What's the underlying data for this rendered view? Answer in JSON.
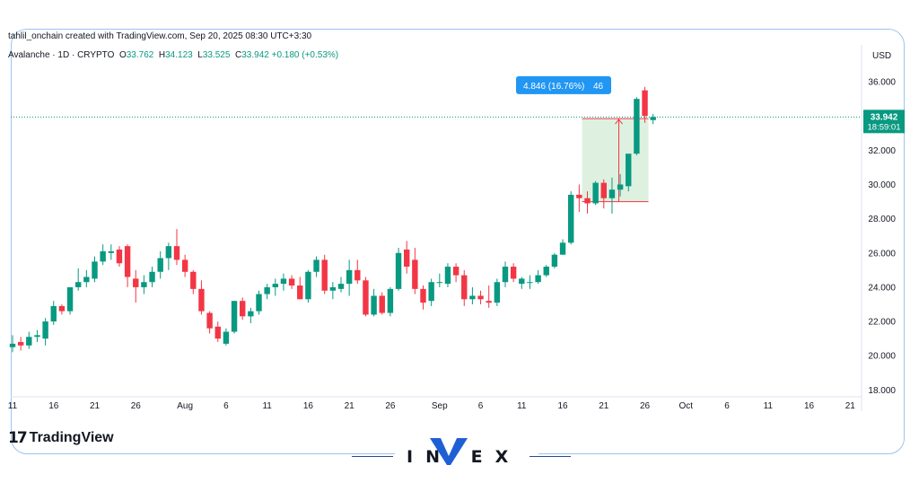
{
  "header": {
    "attribution": "tahlil_onchain created with TradingView.com, Sep 20, 2025 08:30 UTC+3:30",
    "symbol": "Avalanche · 1D · CRYPTO",
    "ohlc": [
      {
        "label": "O",
        "value": "33.762"
      },
      {
        "label": "H",
        "value": "34.123"
      },
      {
        "label": "L",
        "value": "33.525"
      },
      {
        "label": "C",
        "value": "33.942"
      }
    ],
    "change": "+0.180 (+0.53%)"
  },
  "axis": {
    "currency": "USD"
  },
  "price_badge": {
    "price": "33.942",
    "countdown": "18:59:01"
  },
  "measure": {
    "label": "4.846 (16.76%) ",
    "label_tail": "46"
  },
  "branding": {
    "tradingview": "TradingView",
    "invex": "IN EX"
  },
  "colors": {
    "up": "#089981",
    "down": "#f23645",
    "accent": "#2962ff",
    "measure_fill": "#d3ecd6",
    "measure_box": "#2196f3"
  },
  "chart_data": {
    "type": "candlestick",
    "ylim": [
      17.6,
      37.0
    ],
    "yticks": [
      "18.000",
      "20.000",
      "22.000",
      "24.000",
      "26.000",
      "28.000",
      "30.000",
      "32.000",
      "34.000",
      "36.000"
    ],
    "xticks": [
      "11",
      "16",
      "21",
      "26",
      "Aug",
      "6",
      "11",
      "16",
      "21",
      "26",
      "Sep",
      "6",
      "11",
      "16",
      "21",
      "26",
      "Oct",
      "6",
      "11",
      "16",
      "21"
    ],
    "x_first_date": "2025-07-11",
    "last_price": 33.942,
    "candles": [
      {
        "date": "2025-07-11",
        "o": 20.5,
        "h": 21.2,
        "l": 20.2,
        "c": 20.7
      },
      {
        "date": "2025-07-12",
        "o": 20.8,
        "h": 21.1,
        "l": 20.3,
        "c": 20.6
      },
      {
        "date": "2025-07-13",
        "o": 20.6,
        "h": 21.4,
        "l": 20.4,
        "c": 21.1
      },
      {
        "date": "2025-07-14",
        "o": 21.1,
        "h": 21.5,
        "l": 20.8,
        "c": 21.2
      },
      {
        "date": "2025-07-15",
        "o": 21.0,
        "h": 22.2,
        "l": 20.6,
        "c": 22.0
      },
      {
        "date": "2025-07-16",
        "o": 22.0,
        "h": 23.2,
        "l": 21.8,
        "c": 22.9
      },
      {
        "date": "2025-07-17",
        "o": 22.9,
        "h": 23.0,
        "l": 22.4,
        "c": 22.6
      },
      {
        "date": "2025-07-18",
        "o": 22.6,
        "h": 24.0,
        "l": 22.4,
        "c": 24.0
      },
      {
        "date": "2025-07-19",
        "o": 24.0,
        "h": 25.1,
        "l": 23.8,
        "c": 24.3
      },
      {
        "date": "2025-07-20",
        "o": 24.3,
        "h": 25.0,
        "l": 24.0,
        "c": 24.6
      },
      {
        "date": "2025-07-21",
        "o": 24.5,
        "h": 25.8,
        "l": 24.3,
        "c": 25.5
      },
      {
        "date": "2025-07-22",
        "o": 25.5,
        "h": 26.5,
        "l": 25.3,
        "c": 26.1
      },
      {
        "date": "2025-07-23",
        "o": 26.0,
        "h": 26.5,
        "l": 25.6,
        "c": 26.1
      },
      {
        "date": "2025-07-24",
        "o": 26.2,
        "h": 26.4,
        "l": 25.2,
        "c": 25.4
      },
      {
        "date": "2025-07-25",
        "o": 26.4,
        "h": 26.5,
        "l": 24.0,
        "c": 24.6
      },
      {
        "date": "2025-07-26",
        "o": 24.5,
        "h": 25.0,
        "l": 23.1,
        "c": 24.0
      },
      {
        "date": "2025-07-27",
        "o": 24.0,
        "h": 24.7,
        "l": 23.6,
        "c": 24.3
      },
      {
        "date": "2025-07-28",
        "o": 24.3,
        "h": 25.2,
        "l": 24.0,
        "c": 24.9
      },
      {
        "date": "2025-07-29",
        "o": 24.9,
        "h": 26.1,
        "l": 24.5,
        "c": 25.7
      },
      {
        "date": "2025-07-30",
        "o": 25.7,
        "h": 26.6,
        "l": 25.0,
        "c": 26.4
      },
      {
        "date": "2025-07-31",
        "o": 26.4,
        "h": 27.4,
        "l": 25.3,
        "c": 25.6
      },
      {
        "date": "2025-08-01",
        "o": 25.6,
        "h": 25.9,
        "l": 24.6,
        "c": 24.9
      },
      {
        "date": "2025-08-02",
        "o": 24.9,
        "h": 25.0,
        "l": 23.6,
        "c": 23.9
      },
      {
        "date": "2025-08-03",
        "o": 23.9,
        "h": 24.4,
        "l": 22.4,
        "c": 22.6
      },
      {
        "date": "2025-08-04",
        "o": 22.5,
        "h": 22.6,
        "l": 21.3,
        "c": 21.6
      },
      {
        "date": "2025-08-05",
        "o": 21.7,
        "h": 22.0,
        "l": 20.8,
        "c": 21.0
      },
      {
        "date": "2025-08-06",
        "o": 20.7,
        "h": 21.6,
        "l": 20.6,
        "c": 21.4
      },
      {
        "date": "2025-08-07",
        "o": 21.4,
        "h": 23.2,
        "l": 21.3,
        "c": 23.2
      },
      {
        "date": "2025-08-08",
        "o": 23.2,
        "h": 23.4,
        "l": 22.1,
        "c": 22.3
      },
      {
        "date": "2025-08-09",
        "o": 22.3,
        "h": 22.8,
        "l": 21.9,
        "c": 22.6
      },
      {
        "date": "2025-08-10",
        "o": 22.6,
        "h": 23.8,
        "l": 22.4,
        "c": 23.6
      },
      {
        "date": "2025-08-11",
        "o": 23.6,
        "h": 24.2,
        "l": 23.3,
        "c": 24.0
      },
      {
        "date": "2025-08-12",
        "o": 24.0,
        "h": 24.5,
        "l": 23.5,
        "c": 24.2
      },
      {
        "date": "2025-08-13",
        "o": 24.2,
        "h": 24.8,
        "l": 23.8,
        "c": 24.5
      },
      {
        "date": "2025-08-14",
        "o": 24.5,
        "h": 24.7,
        "l": 23.9,
        "c": 24.1
      },
      {
        "date": "2025-08-15",
        "o": 24.1,
        "h": 24.6,
        "l": 23.3,
        "c": 23.3
      },
      {
        "date": "2025-08-16",
        "o": 23.3,
        "h": 25.0,
        "l": 23.1,
        "c": 24.9
      },
      {
        "date": "2025-08-17",
        "o": 24.9,
        "h": 25.8,
        "l": 24.6,
        "c": 25.6
      },
      {
        "date": "2025-08-18",
        "o": 25.6,
        "h": 25.9,
        "l": 23.6,
        "c": 23.8
      },
      {
        "date": "2025-08-19",
        "o": 23.8,
        "h": 24.3,
        "l": 23.3,
        "c": 24.0
      },
      {
        "date": "2025-08-20",
        "o": 23.9,
        "h": 24.6,
        "l": 23.7,
        "c": 24.2
      },
      {
        "date": "2025-08-21",
        "o": 24.2,
        "h": 25.6,
        "l": 23.5,
        "c": 25.0
      },
      {
        "date": "2025-08-22",
        "o": 25.0,
        "h": 25.6,
        "l": 24.2,
        "c": 24.4
      },
      {
        "date": "2025-08-23",
        "o": 24.4,
        "h": 24.6,
        "l": 22.3,
        "c": 22.4
      },
      {
        "date": "2025-08-24",
        "o": 22.4,
        "h": 23.9,
        "l": 22.3,
        "c": 23.5
      },
      {
        "date": "2025-08-25",
        "o": 23.5,
        "h": 23.7,
        "l": 22.4,
        "c": 22.5
      },
      {
        "date": "2025-08-26",
        "o": 22.5,
        "h": 24.0,
        "l": 22.3,
        "c": 23.9
      },
      {
        "date": "2025-08-27",
        "o": 23.9,
        "h": 26.3,
        "l": 23.8,
        "c": 26.0
      },
      {
        "date": "2025-08-28",
        "o": 26.2,
        "h": 26.7,
        "l": 24.8,
        "c": 25.2
      },
      {
        "date": "2025-08-29",
        "o": 25.6,
        "h": 26.3,
        "l": 23.6,
        "c": 23.9
      },
      {
        "date": "2025-08-30",
        "o": 23.9,
        "h": 24.1,
        "l": 22.7,
        "c": 23.1
      },
      {
        "date": "2025-08-31",
        "o": 23.2,
        "h": 24.5,
        "l": 22.9,
        "c": 24.3
      },
      {
        "date": "2025-09-01",
        "o": 24.3,
        "h": 24.8,
        "l": 24.0,
        "c": 24.3
      },
      {
        "date": "2025-09-02",
        "o": 24.2,
        "h": 25.4,
        "l": 24.0,
        "c": 25.2
      },
      {
        "date": "2025-09-03",
        "o": 25.2,
        "h": 25.4,
        "l": 24.3,
        "c": 24.7
      },
      {
        "date": "2025-09-04",
        "o": 24.7,
        "h": 25.0,
        "l": 22.9,
        "c": 23.3
      },
      {
        "date": "2025-09-05",
        "o": 23.3,
        "h": 24.0,
        "l": 23.0,
        "c": 23.5
      },
      {
        "date": "2025-09-06",
        "o": 23.5,
        "h": 23.8,
        "l": 23.0,
        "c": 23.3
      },
      {
        "date": "2025-09-07",
        "o": 23.2,
        "h": 24.1,
        "l": 22.8,
        "c": 23.1
      },
      {
        "date": "2025-09-08",
        "o": 23.1,
        "h": 24.5,
        "l": 22.9,
        "c": 24.3
      },
      {
        "date": "2025-09-09",
        "o": 24.3,
        "h": 25.5,
        "l": 24.0,
        "c": 25.2
      },
      {
        "date": "2025-09-10",
        "o": 25.2,
        "h": 25.4,
        "l": 24.3,
        "c": 24.5
      },
      {
        "date": "2025-09-11",
        "o": 24.2,
        "h": 24.6,
        "l": 23.9,
        "c": 24.5
      },
      {
        "date": "2025-09-12",
        "o": 24.3,
        "h": 24.7,
        "l": 23.9,
        "c": 24.3
      },
      {
        "date": "2025-09-13",
        "o": 24.3,
        "h": 25.0,
        "l": 24.2,
        "c": 24.7
      },
      {
        "date": "2025-09-14",
        "o": 24.7,
        "h": 25.3,
        "l": 24.6,
        "c": 25.2
      },
      {
        "date": "2025-09-15",
        "o": 25.2,
        "h": 26.0,
        "l": 25.1,
        "c": 25.9
      },
      {
        "date": "2025-09-16",
        "o": 25.9,
        "h": 26.8,
        "l": 25.9,
        "c": 26.6
      },
      {
        "date": "2025-09-17",
        "o": 26.6,
        "h": 29.6,
        "l": 26.5,
        "c": 29.4
      },
      {
        "date": "2025-09-18",
        "o": 29.4,
        "h": 30.0,
        "l": 28.4,
        "c": 29.2
      },
      {
        "date": "2025-09-19",
        "o": 29.2,
        "h": 29.6,
        "l": 28.3,
        "c": 28.9
      },
      {
        "date": "2025-09-20",
        "o": 28.9,
        "h": 30.2,
        "l": 28.8,
        "c": 30.1
      },
      {
        "date": "2025-09-21",
        "o": 30.1,
        "h": 30.3,
        "l": 28.6,
        "c": 29.2
      },
      {
        "date": "2025-09-22",
        "o": 29.2,
        "h": 30.4,
        "l": 28.3,
        "c": 29.7
      },
      {
        "date": "2025-09-23",
        "o": 29.7,
        "h": 30.6,
        "l": 29.3,
        "c": 30.0
      },
      {
        "date": "2025-09-24",
        "o": 29.9,
        "h": 31.7,
        "l": 29.6,
        "c": 31.8
      },
      {
        "date": "2025-09-25",
        "o": 31.8,
        "h": 35.1,
        "l": 31.7,
        "c": 35.0
      },
      {
        "date": "2025-09-26",
        "o": 35.5,
        "h": 35.7,
        "l": 33.6,
        "c": 34.0
      },
      {
        "date": "2025-09-27",
        "o": 33.762,
        "h": 34.123,
        "l": 33.525,
        "c": 33.942
      }
    ]
  }
}
